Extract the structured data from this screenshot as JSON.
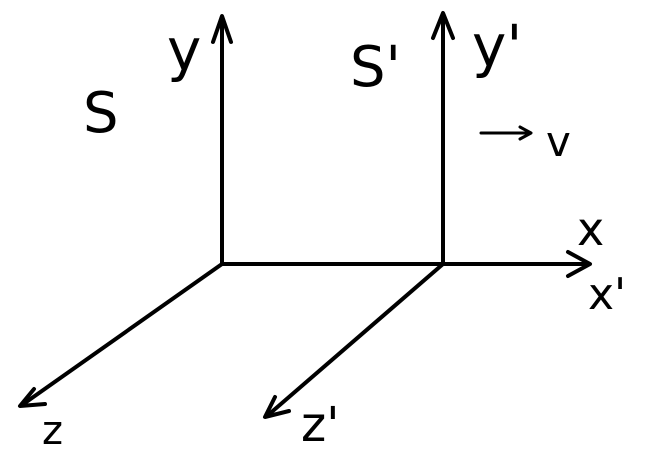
{
  "diagram": {
    "frames": [
      {
        "name": "S",
        "axes": [
          "y",
          "x",
          "z"
        ]
      },
      {
        "name": "S'",
        "axes": [
          "y'",
          "x'",
          "z'"
        ]
      }
    ],
    "labels": {
      "frame_s": "S",
      "frame_s_prime": "S'",
      "y_axis_s": "y",
      "y_axis_s_prime": "y'",
      "x_axis": "x",
      "x_axis_prime": "x'",
      "z_axis_s": "z",
      "z_axis_s_prime": "z'",
      "velocity": "v"
    },
    "colors": {
      "stroke": "#000000",
      "background": "#ffffff"
    }
  }
}
